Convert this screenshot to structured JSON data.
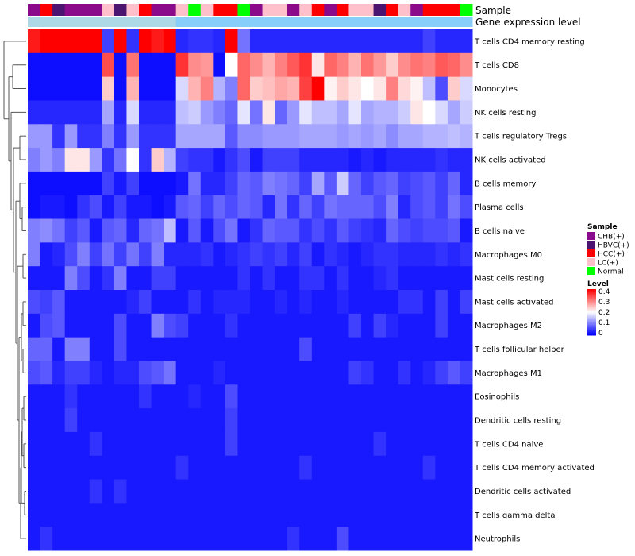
{
  "chart_data": {
    "type": "heatmap",
    "annotation_labels": {
      "sample": "Sample",
      "gene_expression": "Gene expression level"
    },
    "rows": [
      "T cells CD4 memory resting",
      "T cells CD8",
      "Monocytes",
      "NK cells resting",
      "T cells regulatory  Tregs",
      "NK cells activated",
      "B cells memory",
      "Plasma cells",
      "B cells naive",
      "Macrophages M0",
      "Mast cells resting",
      "Mast cells activated",
      "Macrophages M2",
      "T cells follicular helper",
      "Macrophages M1",
      "Eosinophils",
      "Dendritic cells resting",
      "T cells CD4 naive",
      "T cells CD4 memory activated",
      "Dendritic cells activated",
      "T cells gamma delta",
      "Neutrophils"
    ],
    "sample_groups": [
      "CHB(+)",
      "HCC(+)",
      "HBVC(+)",
      "CHB(+)",
      "CHB(+)",
      "CHB(+)",
      "LC(+)",
      "HBVC(+)",
      "LC(+)",
      "HCC(+)",
      "CHB(+)",
      "CHB(+)",
      "LC(+)",
      "Normal",
      "LC(+)",
      "HCC(+)",
      "HCC(+)",
      "Normal",
      "CHB(+)",
      "LC(+)",
      "LC(+)",
      "CHB(+)",
      "LC(+)",
      "HCC(+)",
      "CHB(+)",
      "HCC(+)",
      "LC(+)",
      "LC(+)",
      "HBVC(+)",
      "HCC(+)",
      "LC(+)",
      "CHB(+)",
      "HCC(+)",
      "HCC(+)",
      "HCC(+)",
      "Normal"
    ],
    "gene_expression_bar": [
      0,
      0,
      0,
      0,
      0,
      0,
      0,
      0,
      0,
      0,
      0,
      0,
      1,
      1,
      1,
      1,
      1,
      1,
      1,
      1,
      1,
      1,
      1,
      1,
      1,
      1,
      1,
      1,
      1,
      1,
      1,
      1,
      1,
      1,
      1,
      1
    ],
    "values": [
      [
        0.38,
        0.42,
        0.42,
        0.42,
        0.4,
        0.42,
        0.05,
        0.42,
        0.04,
        0.42,
        0.38,
        0.42,
        0.03,
        0.04,
        0.04,
        0.03,
        0.42,
        0.09,
        0.03,
        0.03,
        0.03,
        0.03,
        0.03,
        0.03,
        0.03,
        0.03,
        0.03,
        0.03,
        0.03,
        0.03,
        0.03,
        0.03,
        0.05,
        0.03,
        0.03,
        0.03
      ],
      [
        0.01,
        0.01,
        0.01,
        0.01,
        0.01,
        0.01,
        0.34,
        0.01,
        0.31,
        0.01,
        0.01,
        0.01,
        0.36,
        0.29,
        0.28,
        0.01,
        0.2,
        0.32,
        0.29,
        0.26,
        0.3,
        0.33,
        0.36,
        0.22,
        0.32,
        0.3,
        0.26,
        0.31,
        0.28,
        0.24,
        0.29,
        0.31,
        0.3,
        0.33,
        0.32,
        0.29
      ],
      [
        0.01,
        0.01,
        0.01,
        0.01,
        0.01,
        0.01,
        0.24,
        0.01,
        0.26,
        0.01,
        0.01,
        0.01,
        0.17,
        0.26,
        0.3,
        0.14,
        0.1,
        0.32,
        0.24,
        0.25,
        0.27,
        0.26,
        0.35,
        0.42,
        0.21,
        0.24,
        0.22,
        0.2,
        0.22,
        0.3,
        0.23,
        0.21,
        0.15,
        0.06,
        0.24,
        0.17
      ],
      [
        0.03,
        0.03,
        0.03,
        0.03,
        0.03,
        0.03,
        0.13,
        0.03,
        0.17,
        0.03,
        0.03,
        0.03,
        0.15,
        0.16,
        0.12,
        0.1,
        0.08,
        0.18,
        0.09,
        0.22,
        0.08,
        0.12,
        0.18,
        0.15,
        0.15,
        0.13,
        0.18,
        0.13,
        0.14,
        0.14,
        0.16,
        0.22,
        0.2,
        0.17,
        0.13,
        0.16
      ],
      [
        0.12,
        0.12,
        0.04,
        0.12,
        0.04,
        0.04,
        0.1,
        0.04,
        0.12,
        0.04,
        0.04,
        0.04,
        0.13,
        0.13,
        0.13,
        0.13,
        0.07,
        0.11,
        0.11,
        0.12,
        0.12,
        0.12,
        0.13,
        0.13,
        0.13,
        0.12,
        0.13,
        0.12,
        0.13,
        0.11,
        0.13,
        0.13,
        0.14,
        0.14,
        0.15,
        0.14
      ],
      [
        0.1,
        0.12,
        0.1,
        0.22,
        0.22,
        0.12,
        0.04,
        0.09,
        0.2,
        0.04,
        0.24,
        0.14,
        0.05,
        0.04,
        0.04,
        0.02,
        0.04,
        0.06,
        0.02,
        0.05,
        0.05,
        0.05,
        0.03,
        0.03,
        0.03,
        0.03,
        0.02,
        0.03,
        0.02,
        0.03,
        0.03,
        0.03,
        0.03,
        0.04,
        0.03,
        0.03
      ],
      [
        0.01,
        0.01,
        0.01,
        0.01,
        0.01,
        0.01,
        0.05,
        0.02,
        0.05,
        0.01,
        0.01,
        0.01,
        0.02,
        0.09,
        0.03,
        0.03,
        0.05,
        0.08,
        0.07,
        0.1,
        0.09,
        0.08,
        0.05,
        0.13,
        0.07,
        0.16,
        0.08,
        0.05,
        0.07,
        0.08,
        0.05,
        0.06,
        0.07,
        0.05,
        0.08,
        0.03
      ],
      [
        0.01,
        0.02,
        0.02,
        0.01,
        0.04,
        0.06,
        0.02,
        0.05,
        0.02,
        0.02,
        0.01,
        0.02,
        0.07,
        0.08,
        0.05,
        0.08,
        0.06,
        0.08,
        0.07,
        0.03,
        0.09,
        0.04,
        0.08,
        0.05,
        0.09,
        0.08,
        0.08,
        0.08,
        0.06,
        0.1,
        0.03,
        0.06,
        0.07,
        0.05,
        0.09,
        0.06
      ],
      [
        0.1,
        0.11,
        0.09,
        0.05,
        0.07,
        0.02,
        0.07,
        0.08,
        0.03,
        0.08,
        0.09,
        0.15,
        0.02,
        0.07,
        0.02,
        0.06,
        0.09,
        0.02,
        0.04,
        0.08,
        0.07,
        0.07,
        0.04,
        0.06,
        0.04,
        0.07,
        0.05,
        0.04,
        0.03,
        0.08,
        0.06,
        0.05,
        0.06,
        0.06,
        0.07,
        0.02
      ],
      [
        0.1,
        0.02,
        0.03,
        0.06,
        0.1,
        0.05,
        0.09,
        0.05,
        0.09,
        0.05,
        0.1,
        0.03,
        0.03,
        0.03,
        0.04,
        0.02,
        0.03,
        0.04,
        0.05,
        0.04,
        0.05,
        0.03,
        0.05,
        0.02,
        0.04,
        0.03,
        0.02,
        0.03,
        0.04,
        0.04,
        0.03,
        0.03,
        0.03,
        0.04,
        0.03,
        0.04
      ],
      [
        0.02,
        0.02,
        0.02,
        0.1,
        0.06,
        0.02,
        0.04,
        0.1,
        0.02,
        0.02,
        0.05,
        0.05,
        0.02,
        0.02,
        0.02,
        0.02,
        0.02,
        0.04,
        0.02,
        0.04,
        0.02,
        0.02,
        0.04,
        0.04,
        0.02,
        0.04,
        0.02,
        0.02,
        0.03,
        0.04,
        0.02,
        0.02,
        0.02,
        0.02,
        0.02,
        0.02
      ],
      [
        0.06,
        0.05,
        0.07,
        0.02,
        0.02,
        0.02,
        0.02,
        0.02,
        0.03,
        0.05,
        0.02,
        0.02,
        0.02,
        0.04,
        0.02,
        0.03,
        0.03,
        0.03,
        0.02,
        0.02,
        0.03,
        0.02,
        0.03,
        0.02,
        0.02,
        0.03,
        0.02,
        0.02,
        0.02,
        0.02,
        0.04,
        0.04,
        0.02,
        0.05,
        0.02,
        0.05
      ],
      [
        0.02,
        0.06,
        0.07,
        0.02,
        0.02,
        0.02,
        0.02,
        0.06,
        0.02,
        0.02,
        0.1,
        0.06,
        0.05,
        0.02,
        0.02,
        0.02,
        0.04,
        0.02,
        0.02,
        0.02,
        0.02,
        0.02,
        0.02,
        0.02,
        0.02,
        0.02,
        0.05,
        0.02,
        0.05,
        0.03,
        0.02,
        0.02,
        0.02,
        0.05,
        0.02,
        0.02
      ],
      [
        0.08,
        0.08,
        0.02,
        0.1,
        0.1,
        0.02,
        0.02,
        0.06,
        0.02,
        0.02,
        0.02,
        0.02,
        0.02,
        0.02,
        0.02,
        0.02,
        0.02,
        0.02,
        0.02,
        0.02,
        0.02,
        0.02,
        0.06,
        0.02,
        0.02,
        0.02,
        0.02,
        0.02,
        0.02,
        0.02,
        0.02,
        0.02,
        0.02,
        0.02,
        0.02,
        0.02
      ],
      [
        0.06,
        0.07,
        0.03,
        0.05,
        0.05,
        0.03,
        0.02,
        0.03,
        0.03,
        0.06,
        0.07,
        0.09,
        0.02,
        0.02,
        0.02,
        0.03,
        0.02,
        0.02,
        0.02,
        0.02,
        0.02,
        0.02,
        0.02,
        0.02,
        0.02,
        0.02,
        0.05,
        0.04,
        0.02,
        0.02,
        0.04,
        0.02,
        0.03,
        0.05,
        0.07,
        0.05
      ],
      [
        0.02,
        0.02,
        0.02,
        0.04,
        0.02,
        0.02,
        0.02,
        0.02,
        0.02,
        0.04,
        0.02,
        0.02,
        0.02,
        0.03,
        0.02,
        0.02,
        0.06,
        0.02,
        0.02,
        0.02,
        0.02,
        0.02,
        0.02,
        0.02,
        0.02,
        0.02,
        0.02,
        0.02,
        0.02,
        0.02,
        0.02,
        0.02,
        0.02,
        0.02,
        0.02,
        0.02
      ],
      [
        0.02,
        0.02,
        0.02,
        0.05,
        0.02,
        0.02,
        0.02,
        0.02,
        0.02,
        0.02,
        0.02,
        0.02,
        0.02,
        0.02,
        0.02,
        0.02,
        0.05,
        0.02,
        0.02,
        0.02,
        0.02,
        0.02,
        0.02,
        0.02,
        0.02,
        0.02,
        0.02,
        0.02,
        0.02,
        0.02,
        0.02,
        0.02,
        0.02,
        0.02,
        0.02,
        0.02
      ],
      [
        0.02,
        0.02,
        0.02,
        0.02,
        0.02,
        0.04,
        0.02,
        0.02,
        0.02,
        0.02,
        0.02,
        0.02,
        0.02,
        0.02,
        0.02,
        0.02,
        0.05,
        0.02,
        0.02,
        0.02,
        0.02,
        0.02,
        0.02,
        0.02,
        0.02,
        0.02,
        0.02,
        0.02,
        0.04,
        0.02,
        0.02,
        0.02,
        0.02,
        0.02,
        0.02,
        0.02
      ],
      [
        0.02,
        0.02,
        0.02,
        0.02,
        0.02,
        0.02,
        0.02,
        0.02,
        0.02,
        0.02,
        0.02,
        0.02,
        0.04,
        0.02,
        0.02,
        0.02,
        0.02,
        0.02,
        0.02,
        0.02,
        0.02,
        0.02,
        0.04,
        0.02,
        0.02,
        0.02,
        0.02,
        0.02,
        0.02,
        0.02,
        0.02,
        0.02,
        0.04,
        0.02,
        0.02,
        0.02
      ],
      [
        0.02,
        0.02,
        0.02,
        0.02,
        0.02,
        0.04,
        0.02,
        0.04,
        0.02,
        0.02,
        0.02,
        0.02,
        0.02,
        0.02,
        0.02,
        0.02,
        0.02,
        0.02,
        0.02,
        0.02,
        0.02,
        0.02,
        0.02,
        0.02,
        0.02,
        0.02,
        0.02,
        0.02,
        0.02,
        0.02,
        0.02,
        0.02,
        0.02,
        0.02,
        0.02,
        0.02
      ],
      [
        0.02,
        0.02,
        0.02,
        0.02,
        0.02,
        0.02,
        0.02,
        0.02,
        0.02,
        0.02,
        0.02,
        0.02,
        0.02,
        0.02,
        0.02,
        0.02,
        0.02,
        0.02,
        0.02,
        0.02,
        0.02,
        0.02,
        0.02,
        0.02,
        0.02,
        0.02,
        0.02,
        0.02,
        0.02,
        0.02,
        0.02,
        0.02,
        0.02,
        0.02,
        0.02,
        0.02
      ],
      [
        0.02,
        0.04,
        0.02,
        0.02,
        0.02,
        0.02,
        0.02,
        0.02,
        0.02,
        0.02,
        0.02,
        0.02,
        0.02,
        0.02,
        0.02,
        0.02,
        0.02,
        0.02,
        0.02,
        0.02,
        0.02,
        0.04,
        0.02,
        0.02,
        0.02,
        0.06,
        0.02,
        0.02,
        0.02,
        0.02,
        0.02,
        0.02,
        0.02,
        0.02,
        0.02,
        0.02
      ]
    ],
    "legend_sample": {
      "title": "Sample",
      "items": [
        {
          "label": "CHB(+)",
          "color": "#8B0A8B"
        },
        {
          "label": "HBVC(+)",
          "color": "#4B1470"
        },
        {
          "label": "HCC(+)",
          "color": "#FF0000"
        },
        {
          "label": "LC(+)",
          "color": "#FFC0CB"
        },
        {
          "label": "Normal",
          "color": "#00FF00"
        }
      ]
    },
    "legend_level": {
      "title": "Level",
      "ticks": [
        "0.4",
        "0.3",
        "0.2",
        "0.1",
        "0"
      ],
      "range": [
        0,
        0.4
      ]
    },
    "gene_bar_colors": [
      "#ADD8E6",
      "#87CEFA"
    ],
    "color_scale": {
      "low": "#0000FF",
      "mid": "#FFFFFF",
      "high": "#FF0000",
      "mid_value": 0.2
    }
  }
}
